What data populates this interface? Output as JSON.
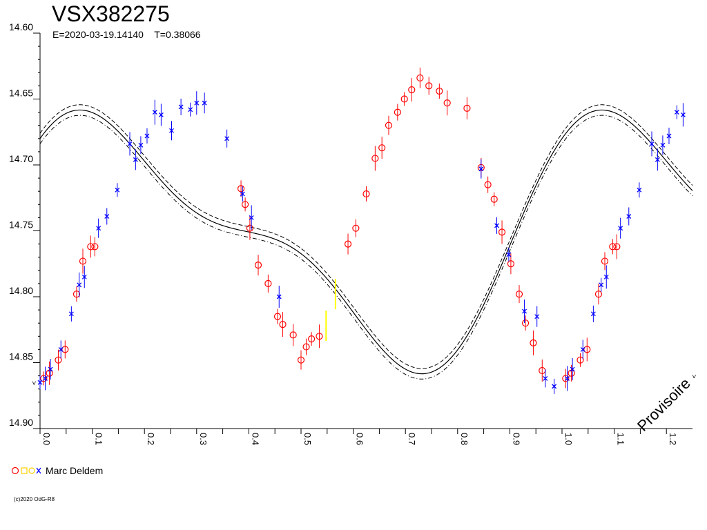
{
  "chart_data": {
    "type": "scatter",
    "title": "VSX382275",
    "subtitle": "E=2020-03-19.14140    T=0.38066",
    "xlim": [
      0,
      1.25
    ],
    "ylim": [
      14.6,
      14.9
    ],
    "y_inverted": true,
    "y_ticks": [
      "14.60",
      "14.65",
      "14.70",
      "14.75",
      "14.80",
      "14.85",
      "14.90"
    ],
    "x_ticks": [
      "0.0",
      "0.1",
      "0.2",
      "0.3",
      "0.4",
      "0.5",
      "0.6",
      "0.7",
      "0.8",
      "0.9",
      "1.0",
      "1.1",
      "1.2"
    ],
    "fit": {
      "mean": 14.756,
      "a1": 0.0815,
      "p1": 0.16,
      "a2": 0.034,
      "p2": 0.025,
      "band": 0.004
    },
    "series": [
      {
        "name": "red-circles",
        "color": "#ff0000",
        "marker": "circle",
        "points": [
          [
            0.007,
            14.862
          ],
          [
            0.018,
            14.858
          ],
          [
            0.035,
            14.848
          ],
          [
            0.048,
            14.84
          ],
          [
            0.07,
            14.798
          ],
          [
            0.082,
            14.773
          ],
          [
            0.097,
            14.762
          ],
          [
            0.105,
            14.762
          ],
          [
            0.385,
            14.718
          ],
          [
            0.393,
            14.73
          ],
          [
            0.402,
            14.748
          ],
          [
            0.418,
            14.776
          ],
          [
            0.437,
            14.79
          ],
          [
            0.455,
            14.815
          ],
          [
            0.465,
            14.821
          ],
          [
            0.485,
            14.829
          ],
          [
            0.5,
            14.848
          ],
          [
            0.51,
            14.838
          ],
          [
            0.52,
            14.832
          ],
          [
            0.535,
            14.83
          ],
          [
            0.59,
            14.76
          ],
          [
            0.605,
            14.748
          ],
          [
            0.625,
            14.722
          ],
          [
            0.642,
            14.695
          ],
          [
            0.655,
            14.687
          ],
          [
            0.668,
            14.67
          ],
          [
            0.685,
            14.66
          ],
          [
            0.698,
            14.65
          ],
          [
            0.712,
            14.643
          ],
          [
            0.728,
            14.634
          ],
          [
            0.745,
            14.64
          ],
          [
            0.765,
            14.644
          ],
          [
            0.78,
            14.653
          ],
          [
            0.818,
            14.657
          ],
          [
            0.845,
            14.702
          ],
          [
            0.858,
            14.715
          ],
          [
            0.87,
            14.726
          ],
          [
            0.885,
            14.751
          ],
          [
            0.902,
            14.775
          ],
          [
            0.918,
            14.798
          ],
          [
            0.93,
            14.82
          ],
          [
            0.945,
            14.835
          ],
          [
            0.962,
            14.856
          ],
          [
            1.007,
            14.862
          ],
          [
            1.018,
            14.858
          ],
          [
            1.035,
            14.848
          ],
          [
            1.048,
            14.84
          ],
          [
            1.07,
            14.798
          ],
          [
            1.082,
            14.773
          ],
          [
            1.097,
            14.762
          ],
          [
            1.105,
            14.762
          ]
        ]
      },
      {
        "name": "blue-crosses",
        "color": "#0000ff",
        "marker": "cross",
        "points": [
          [
            0.0,
            14.865
          ],
          [
            0.01,
            14.862
          ],
          [
            0.02,
            14.855
          ],
          [
            0.04,
            14.84
          ],
          [
            0.06,
            14.813
          ],
          [
            0.075,
            14.791
          ],
          [
            0.085,
            14.785
          ],
          [
            0.112,
            14.748
          ],
          [
            0.128,
            14.739
          ],
          [
            0.148,
            14.719
          ],
          [
            0.172,
            14.684
          ],
          [
            0.183,
            14.696
          ],
          [
            0.193,
            14.685
          ],
          [
            0.205,
            14.678
          ],
          [
            0.22,
            14.66
          ],
          [
            0.232,
            14.662
          ],
          [
            0.252,
            14.674
          ],
          [
            0.27,
            14.656
          ],
          [
            0.288,
            14.658
          ],
          [
            0.3,
            14.653
          ],
          [
            0.315,
            14.653
          ],
          [
            0.358,
            14.68
          ],
          [
            0.388,
            14.722
          ],
          [
            0.405,
            14.74
          ],
          [
            0.458,
            14.8
          ],
          [
            0.845,
            14.703
          ],
          [
            0.875,
            14.746
          ],
          [
            0.898,
            14.768
          ],
          [
            0.928,
            14.811
          ],
          [
            0.952,
            14.815
          ],
          [
            0.968,
            14.862
          ],
          [
            0.985,
            14.868
          ],
          [
            1.01,
            14.862
          ],
          [
            1.02,
            14.855
          ],
          [
            1.04,
            14.84
          ],
          [
            1.06,
            14.813
          ],
          [
            1.075,
            14.791
          ],
          [
            1.085,
            14.785
          ],
          [
            1.112,
            14.748
          ],
          [
            1.128,
            14.739
          ],
          [
            1.148,
            14.719
          ],
          [
            1.172,
            14.684
          ],
          [
            1.183,
            14.696
          ],
          [
            1.193,
            14.685
          ],
          [
            1.205,
            14.678
          ],
          [
            1.22,
            14.66
          ],
          [
            1.232,
            14.662
          ]
        ]
      },
      {
        "name": "yellow-bars",
        "color": "#ffff00",
        "marker": "bar",
        "points": [
          [
            0.548,
            14.822
          ],
          [
            0.566,
            14.798
          ]
        ]
      }
    ]
  },
  "legend": {
    "label": "Marc Deldem"
  },
  "watermark": "Provisoire",
  "copyright": "(c)2020 OdG-R8"
}
